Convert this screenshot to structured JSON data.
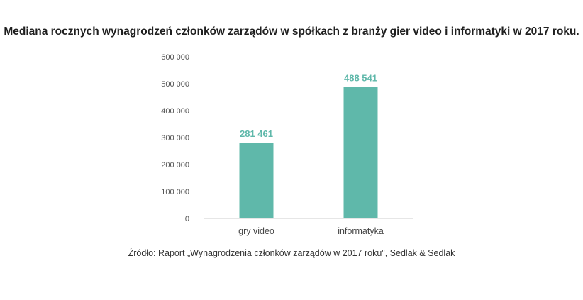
{
  "title": "Mediana rocznych wynagrodzeń członków zarządów w spółkach z branży gier video i informatyki w 2017 roku.",
  "source_note": "Źródło: Raport „Wynagrodzenia członków zarządów w 2017 roku\", Sedlak & Sedlak",
  "colors": {
    "bar": "#5fb8aa",
    "label": "#5fb8aa",
    "axis": "#cccccc"
  },
  "chart_data": {
    "type": "bar",
    "categories": [
      "gry video",
      "informatyka"
    ],
    "values": [
      281461,
      488541
    ],
    "value_labels": [
      "281 461",
      "488 541"
    ],
    "ylim": [
      0,
      600000
    ],
    "yticks": [
      0,
      100000,
      200000,
      300000,
      400000,
      500000,
      600000
    ],
    "ytick_labels": [
      "0",
      "100 000",
      "200 000",
      "300 000",
      "400 000",
      "500 000",
      "600 000"
    ],
    "grid": false,
    "legend": "none"
  }
}
